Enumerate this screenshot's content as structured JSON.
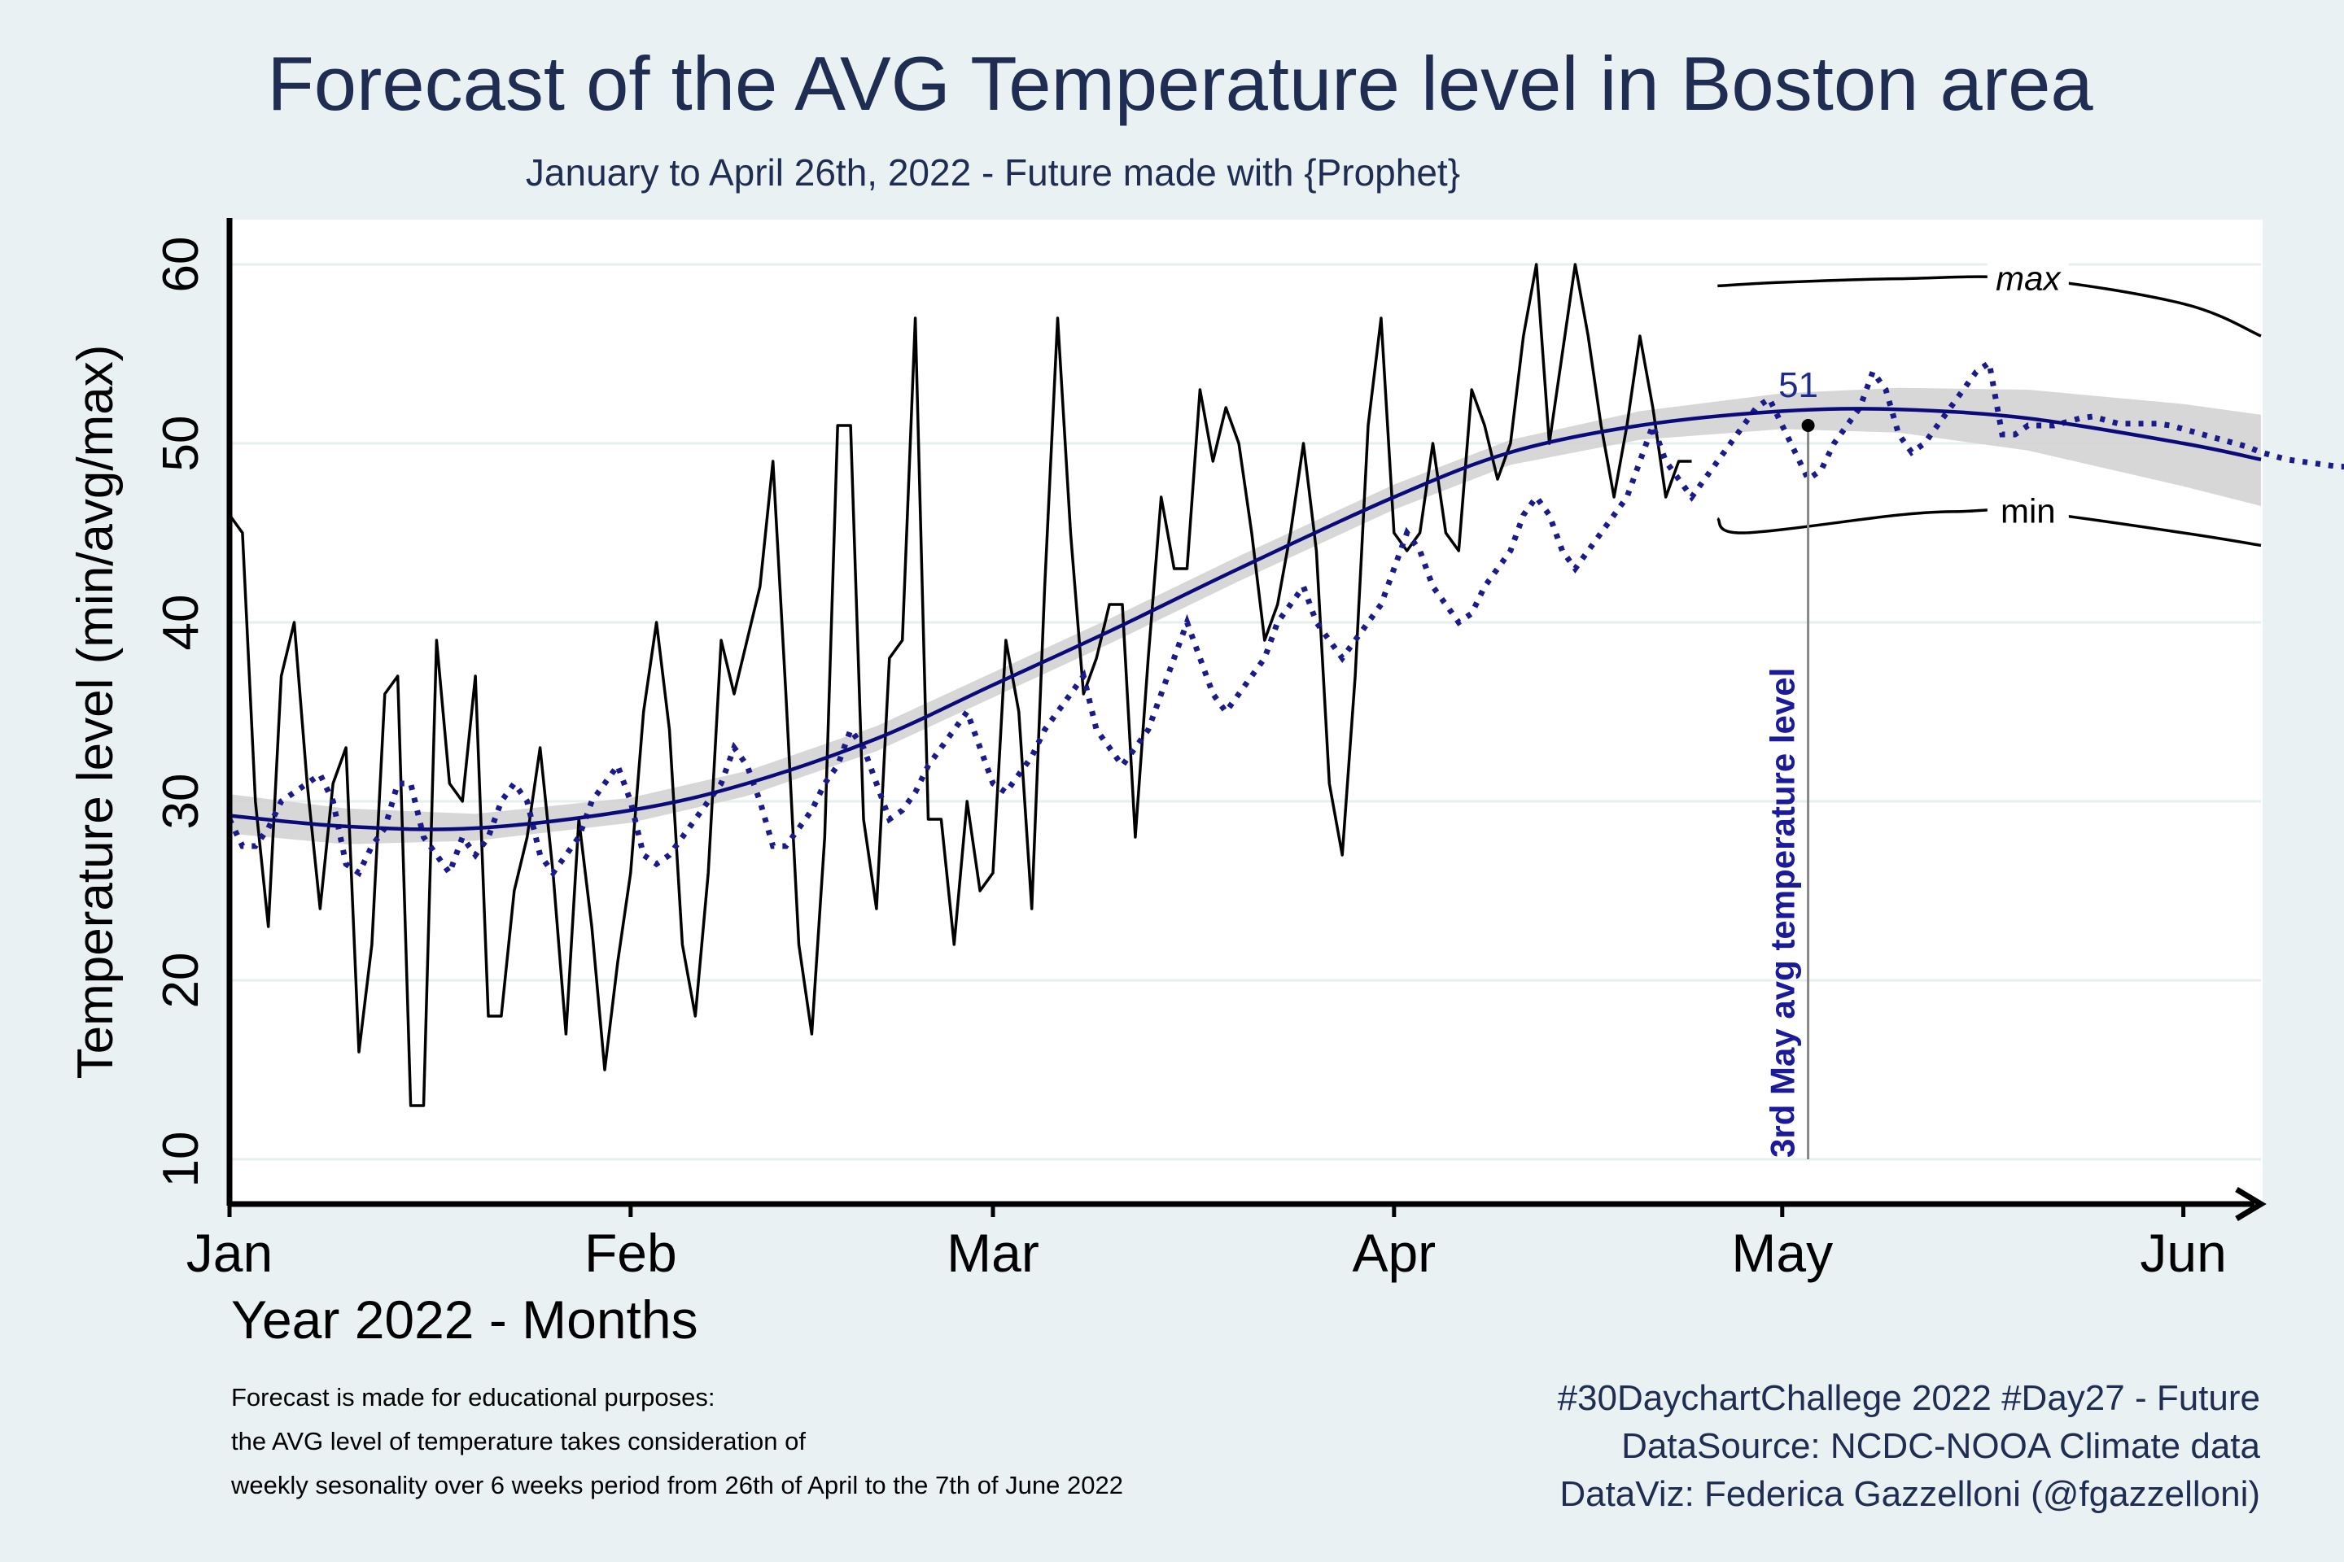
{
  "chart_data": {
    "type": "line",
    "title": "Forecast of the AVG Temperature level in Boston area",
    "subtitle": "January to April 26th, 2022 - Future made with {Prophet}",
    "xlabel": "Year 2022 - Months",
    "ylabel": "Temperature level (min/avg/max)",
    "x_ticks": [
      {
        "date": "2022-01-01",
        "label": "Jan"
      },
      {
        "date": "2022-02-01",
        "label": "Feb"
      },
      {
        "date": "2022-03-01",
        "label": "Mar"
      },
      {
        "date": "2022-04-01",
        "label": "Apr"
      },
      {
        "date": "2022-05-01",
        "label": "May"
      },
      {
        "date": "2022-06-01",
        "label": "Jun"
      }
    ],
    "y_ticks": [
      10,
      20,
      30,
      40,
      50,
      60
    ],
    "xlim": [
      "2022-01-01",
      "2022-06-07"
    ],
    "ylim": [
      7.5,
      62.5
    ],
    "grid": "horizontal",
    "observed_series": {
      "start_date": "2022-01-01",
      "values": [
        46,
        45,
        30,
        23,
        37,
        40,
        31,
        24,
        31,
        33,
        16,
        22,
        36,
        37,
        13,
        13,
        39,
        31,
        30,
        37,
        18,
        18,
        25,
        28,
        33,
        26,
        17,
        29,
        23,
        15,
        21,
        26,
        35,
        40,
        34,
        22,
        18,
        26,
        39,
        36,
        39,
        42,
        49,
        36,
        22,
        17,
        28,
        51,
        51,
        29,
        24,
        38,
        39,
        57,
        29,
        29,
        22,
        30,
        25,
        26,
        39,
        35,
        24,
        42,
        57,
        45,
        36,
        38,
        41,
        41,
        28,
        38,
        47,
        43,
        43,
        53,
        49,
        52,
        50,
        45,
        39,
        41,
        45,
        50,
        44,
        31,
        27,
        37,
        51,
        57,
        45,
        44,
        45,
        50,
        45,
        44,
        53,
        51,
        48,
        50,
        56,
        60,
        50,
        55,
        60,
        56,
        51,
        47,
        51,
        56,
        52,
        47,
        49,
        49
      ]
    },
    "observed_max_annotation": {
      "label": "max",
      "points": [
        [
          "2022-04-26",
          58.8
        ],
        [
          "2022-05-01",
          59.0
        ],
        [
          "2022-05-10",
          59.2
        ],
        [
          "2022-05-20",
          59.2
        ],
        [
          "2022-06-01",
          57.8
        ],
        [
          "2022-06-07",
          56.0
        ]
      ]
    },
    "observed_min_annotation": {
      "label": "min",
      "points": [
        [
          "2022-04-26",
          45.8
        ],
        [
          "2022-04-28",
          45.0
        ],
        [
          "2022-05-10",
          46.0
        ],
        [
          "2022-05-15",
          46.2
        ],
        [
          "2022-05-20",
          46.2
        ],
        [
          "2022-06-01",
          45.0
        ],
        [
          "2022-06-07",
          44.3
        ]
      ]
    },
    "trend_series": {
      "points": [
        [
          "2022-01-01",
          29.2
        ],
        [
          "2022-01-10",
          28.6
        ],
        [
          "2022-01-20",
          28.5
        ],
        [
          "2022-02-01",
          29.5
        ],
        [
          "2022-02-10",
          31.0
        ],
        [
          "2022-02-20",
          33.5
        ],
        [
          "2022-03-01",
          36.5
        ],
        [
          "2022-03-10",
          39.5
        ],
        [
          "2022-03-20",
          43.0
        ],
        [
          "2022-04-01",
          47.0
        ],
        [
          "2022-04-10",
          49.5
        ],
        [
          "2022-04-20",
          51.0
        ],
        [
          "2022-05-01",
          51.8
        ],
        [
          "2022-05-10",
          51.9
        ],
        [
          "2022-05-20",
          51.4
        ],
        [
          "2022-06-01",
          50.0
        ],
        [
          "2022-06-07",
          49.1
        ]
      ]
    },
    "confidence_band": {
      "lower": [
        [
          "2022-01-01",
          28.2
        ],
        [
          "2022-01-10",
          27.6
        ],
        [
          "2022-01-20",
          27.8
        ],
        [
          "2022-02-01",
          28.8
        ],
        [
          "2022-02-10",
          30.3
        ],
        [
          "2022-02-20",
          32.8
        ],
        [
          "2022-03-01",
          35.8
        ],
        [
          "2022-03-10",
          38.8
        ],
        [
          "2022-03-20",
          42.3
        ],
        [
          "2022-04-01",
          46.3
        ],
        [
          "2022-04-10",
          48.8
        ],
        [
          "2022-04-20",
          50.2
        ],
        [
          "2022-05-01",
          50.8
        ],
        [
          "2022-05-10",
          50.6
        ],
        [
          "2022-05-20",
          49.6
        ],
        [
          "2022-06-01",
          47.6
        ],
        [
          "2022-06-07",
          46.5
        ]
      ],
      "upper": [
        [
          "2022-01-01",
          30.4
        ],
        [
          "2022-01-10",
          29.6
        ],
        [
          "2022-01-20",
          29.3
        ],
        [
          "2022-02-01",
          30.2
        ],
        [
          "2022-02-10",
          31.7
        ],
        [
          "2022-02-20",
          34.2
        ],
        [
          "2022-03-01",
          37.2
        ],
        [
          "2022-03-10",
          40.2
        ],
        [
          "2022-03-20",
          43.7
        ],
        [
          "2022-04-01",
          47.7
        ],
        [
          "2022-04-10",
          50.2
        ],
        [
          "2022-04-20",
          51.8
        ],
        [
          "2022-05-01",
          52.8
        ],
        [
          "2022-05-10",
          53.1
        ],
        [
          "2022-05-20",
          53.0
        ],
        [
          "2022-06-01",
          52.2
        ],
        [
          "2022-06-07",
          51.6
        ]
      ]
    },
    "forecast_dotted_series": {
      "start_date": "2022-01-01",
      "values": [
        29,
        27.5,
        27.5,
        28.5,
        30,
        30.5,
        31,
        31.5,
        30,
        26.5,
        26,
        27.5,
        28.5,
        31,
        31,
        28,
        27,
        26,
        28,
        27,
        28,
        30,
        31,
        30,
        27,
        26,
        27,
        28,
        30,
        31,
        32,
        30,
        27,
        26.5,
        27,
        28,
        29,
        30,
        31,
        33,
        32,
        30,
        27.5,
        27.5,
        28.5,
        29.5,
        31,
        32,
        34,
        33,
        31,
        29,
        29.5,
        30.5,
        32,
        33,
        34,
        35,
        33,
        31,
        30.5,
        31.5,
        32.5,
        34,
        35,
        36,
        37,
        34,
        33,
        32,
        33,
        34,
        36,
        38,
        40,
        38,
        36,
        35,
        36,
        37,
        38,
        40,
        41,
        42,
        40,
        39,
        38,
        39,
        40,
        41,
        43,
        45,
        44,
        42,
        41,
        40,
        40.5,
        42,
        43,
        44,
        46,
        47,
        46,
        44,
        43,
        44,
        45,
        46,
        47,
        49,
        51,
        49,
        48,
        47,
        48,
        49,
        50,
        51,
        52,
        52.5,
        51,
        49.5,
        48,
        48.5,
        50,
        51,
        52,
        54,
        53,
        50.5,
        49.5,
        50,
        51,
        52,
        53,
        54,
        54.5,
        50.5,
        50.5,
        51,
        51,
        51,
        51.2,
        51.4,
        51.5,
        51.3,
        51.1,
        51.1,
        51.1,
        51.1,
        51,
        50.8,
        50.6,
        50.4,
        50.2,
        50,
        49.8,
        49.5,
        49.3,
        49.1,
        49,
        48.9,
        48.8,
        48.7,
        48.7,
        48.6,
        48.6
      ]
    },
    "annotation": {
      "date": "2022-05-03",
      "value": 51,
      "value_label": "51",
      "label": "3rd May avg temperature level"
    }
  },
  "notes": [
    "Forecast is made for educational purposes:",
    "the AVG level of temperature takes consideration of",
    "weekly sesonality over 6 weeks period from 26th of April to the 7th of June 2022"
  ],
  "caption": [
    "#30DaychartChallege 2022 #Day27 - Future",
    "DataSource: NCDC-NOOA Climate data",
    "DataViz: Federica Gazzelloni (@fgazzelloni)"
  ],
  "colors": {
    "background": "#eaf1f3",
    "panel": "#ffffff",
    "observed": "#000000",
    "trend": "#0a0a7a",
    "band": "#d0d0d0",
    "title": "#1f2d52"
  }
}
